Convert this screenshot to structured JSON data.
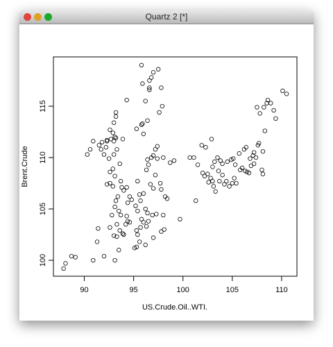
{
  "window": {
    "title": "Quartz 2 [*]"
  },
  "chart_data": {
    "type": "scatter",
    "x_label": "US.Crude.Oil..WTI.",
    "y_label": "Brent.Crude",
    "xlim": [
      86.87,
      111.55
    ],
    "ylim": [
      98.45,
      119.8
    ],
    "xticks": [
      90,
      95,
      100,
      105,
      110
    ],
    "yticks": [
      100,
      105,
      110,
      115
    ],
    "color": "#000000",
    "x": [
      87.9,
      88.1,
      88.7,
      89.1,
      90.9,
      91.3,
      92.0,
      91.4,
      93.1,
      93.5,
      92.6,
      92.8,
      93.3,
      93.0,
      93.6,
      93.9,
      94.0,
      94.2,
      94.4,
      93.3,
      93.1,
      93.2,
      93.5,
      93.7,
      94.3,
      94.6,
      94.4,
      94.6,
      94.8,
      94.0,
      94.3,
      93.7,
      93.8,
      93.4,
      92.9,
      92.6,
      92.3,
      93.1,
      92.6,
      92.9,
      93.6,
      92.5,
      93.0,
      93.3,
      92.0,
      92.2,
      91.7,
      91.5,
      90.6,
      90.3,
      90.9,
      91.8,
      92.3,
      92.7,
      93.0,
      93.2,
      93.9,
      92.9,
      92.6,
      93.0,
      93.2,
      93.2,
      93.1,
      92.3,
      94.3,
      95.3,
      95.8,
      95.9,
      96.0,
      96.4,
      95.8,
      97.0,
      97.5,
      96.6,
      96.8,
      95.9,
      96.6,
      96.6,
      97.8,
      96.2,
      97.6,
      97.9,
      97.2,
      97.4,
      97.0,
      96.8,
      96.4,
      97.4,
      98.0,
      98.7,
      99.1,
      96.5,
      96.3,
      97.2,
      96.7,
      97.0,
      97.7,
      97.8,
      98.2,
      98.4,
      96.0,
      95.4,
      95.6,
      95.7,
      95.2,
      95.4,
      96.2,
      96.4,
      96.9,
      97.3,
      98.0,
      96.5,
      95.8,
      96.0,
      96.3,
      95.7,
      95.3,
      95.4,
      95.6,
      95.1,
      95.3,
      96.2,
      97.0,
      97.8,
      98.1,
      99.7,
      100.7,
      101.1,
      101.5,
      101.3,
      101.9,
      102.3,
      102.9,
      102.0,
      102.2,
      102.5,
      102.8,
      102.6,
      103.1,
      103.0,
      103.3,
      103.0,
      103.2,
      103.5,
      103.8,
      104.0,
      104.5,
      103.6,
      104.0,
      103.7,
      104.2,
      104.4,
      104.7,
      105.0,
      105.2,
      105.4,
      104.9,
      105.1,
      105.3,
      105.7,
      106.2,
      106.4,
      105.8,
      106.0,
      106.3,
      106.5,
      106.7,
      106.9,
      107.2,
      106.8,
      107.1,
      107.4,
      107.2,
      107.6,
      107.7,
      108.1,
      108.1,
      108.0,
      108.3,
      107.5,
      107.8,
      108.2,
      108.5,
      108.6,
      109.4,
      108.9,
      109.2,
      110.1,
      110.5
    ],
    "values": [
      99.2,
      99.7,
      100.4,
      100.3,
      100.0,
      101.8,
      100.4,
      103.1,
      100.0,
      101.0,
      103.2,
      104.4,
      102.3,
      102.4,
      102.9,
      102.6,
      102.5,
      103.5,
      103.8,
      103.5,
      105.2,
      105.8,
      104.8,
      104.4,
      104.3,
      103.7,
      105.6,
      106.2,
      105.9,
      106.8,
      107.1,
      107.7,
      107.1,
      106.2,
      107.2,
      107.5,
      107.4,
      108.2,
      108.6,
      108.9,
      109.4,
      109.9,
      110.3,
      110.8,
      110.3,
      111.0,
      110.8,
      111.2,
      110.8,
      110.3,
      111.6,
      111.5,
      111.7,
      111.8,
      111.6,
      111.9,
      111.8,
      112.4,
      112.7,
      113.4,
      114.0,
      114.4,
      112.0,
      111.6,
      115.6,
      112.8,
      113.2,
      113.3,
      112.3,
      113.6,
      119.0,
      118.3,
      118.6,
      117.5,
      117.8,
      117.2,
      116.6,
      116.8,
      116.8,
      115.5,
      114.4,
      115.0,
      110.8,
      111.1,
      110.2,
      110.0,
      109.8,
      109.9,
      110.0,
      109.5,
      109.7,
      109.3,
      108.8,
      108.3,
      107.4,
      107.0,
      107.5,
      106.9,
      106.2,
      106.0,
      106.5,
      107.7,
      106.4,
      105.8,
      105.3,
      104.8,
      105.0,
      104.6,
      104.4,
      104.5,
      104.4,
      103.8,
      104.0,
      103.7,
      103.3,
      103.2,
      102.9,
      102.5,
      101.8,
      101.2,
      101.3,
      101.5,
      102.2,
      102.8,
      103.0,
      104.0,
      110.0,
      110.0,
      109.3,
      105.8,
      111.2,
      111.0,
      111.8,
      108.5,
      108.2,
      108.4,
      108.0,
      107.6,
      107.2,
      107.7,
      106.7,
      109.1,
      109.6,
      110.0,
      109.7,
      109.4,
      109.6,
      108.7,
      108.3,
      107.7,
      107.4,
      107.7,
      107.2,
      107.5,
      108.0,
      107.5,
      109.8,
      109.9,
      109.3,
      110.4,
      110.8,
      111.0,
      108.8,
      109.0,
      108.7,
      108.6,
      108.5,
      109.2,
      109.4,
      109.9,
      110.2,
      110.0,
      110.5,
      111.2,
      111.4,
      110.6,
      108.4,
      108.8,
      112.6,
      114.9,
      114.3,
      114.9,
      115.3,
      115.6,
      113.8,
      115.3,
      114.6,
      116.5,
      116.2
    ]
  }
}
